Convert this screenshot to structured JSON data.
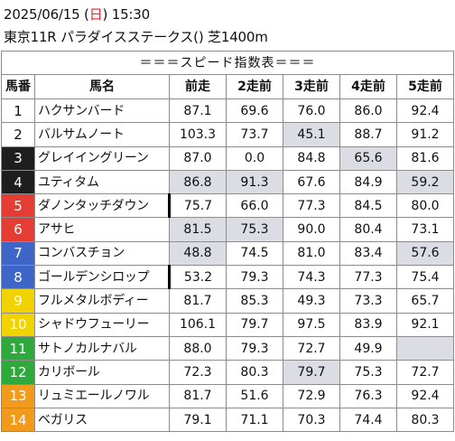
{
  "header": {
    "date": "2025/06/15 (",
    "weekday": "日",
    "time": ") 15:30",
    "race_info": "東京11R パラダイスステークス() 芝1400m"
  },
  "table": {
    "title": "＝＝＝スピード指数表＝＝＝",
    "columns": [
      "馬番",
      "馬名",
      "前走",
      "2走前",
      "3走前",
      "4走前",
      "5走前"
    ],
    "rows": [
      {
        "num": "1",
        "name": "ハクサンバード",
        "vals": [
          "87.1",
          "69.6",
          "76.0",
          "86.0",
          "92.4"
        ]
      },
      {
        "num": "2",
        "name": "バルサムノート",
        "vals": [
          "103.3",
          "73.7",
          "45.1",
          "88.7",
          "91.2"
        ]
      },
      {
        "num": "3",
        "name": "グレイイングリーン",
        "vals": [
          "87.0",
          "0.0",
          "84.8",
          "65.6",
          "81.6"
        ]
      },
      {
        "num": "4",
        "name": "ユティタム",
        "vals": [
          "86.8",
          "91.3",
          "67.6",
          "84.9",
          "59.2"
        ]
      },
      {
        "num": "5",
        "name": "ダノンタッチダウン",
        "vals": [
          "75.7",
          "66.0",
          "77.3",
          "84.5",
          "80.0"
        ]
      },
      {
        "num": "6",
        "name": "アサヒ",
        "vals": [
          "81.5",
          "75.3",
          "90.0",
          "80.4",
          "73.1"
        ]
      },
      {
        "num": "7",
        "name": "コンバスチョン",
        "vals": [
          "48.8",
          "74.5",
          "81.0",
          "83.4",
          "57.6"
        ]
      },
      {
        "num": "8",
        "name": "ゴールデンシロップ",
        "vals": [
          "53.2",
          "79.3",
          "74.3",
          "77.3",
          "75.4"
        ]
      },
      {
        "num": "9",
        "name": "フルメタルボディー",
        "vals": [
          "81.7",
          "85.3",
          "49.3",
          "73.3",
          "65.7"
        ]
      },
      {
        "num": "10",
        "name": "シャドウフューリー",
        "vals": [
          "106.1",
          "79.7",
          "97.5",
          "83.9",
          "92.1"
        ]
      },
      {
        "num": "11",
        "name": "サトノカルナバル",
        "vals": [
          "88.0",
          "79.3",
          "72.7",
          "49.9",
          ""
        ]
      },
      {
        "num": "12",
        "name": "カリボール",
        "vals": [
          "72.3",
          "80.3",
          "79.7",
          "75.3",
          "72.7"
        ]
      },
      {
        "num": "13",
        "name": "リュミエールノワル",
        "vals": [
          "81.7",
          "51.6",
          "72.9",
          "76.3",
          "92.4"
        ]
      },
      {
        "num": "14",
        "name": "ベガリス",
        "vals": [
          "79.1",
          "71.1",
          "70.3",
          "74.4",
          "80.3"
        ]
      }
    ],
    "highlighted_cells": [
      [
        1,
        2
      ],
      [
        2,
        3
      ],
      [
        3,
        0
      ],
      [
        3,
        1
      ],
      [
        3,
        4
      ],
      [
        5,
        0
      ],
      [
        5,
        1
      ],
      [
        6,
        0
      ],
      [
        6,
        4
      ],
      [
        10,
        4
      ],
      [
        11,
        2
      ]
    ],
    "bracket_colors": [
      "#ffffff",
      "#1e1e1e",
      "#e53c33",
      "#3e66c8",
      "#f0d300",
      "#2eaa3c",
      "#f29a1c",
      "#f07f9e"
    ]
  }
}
